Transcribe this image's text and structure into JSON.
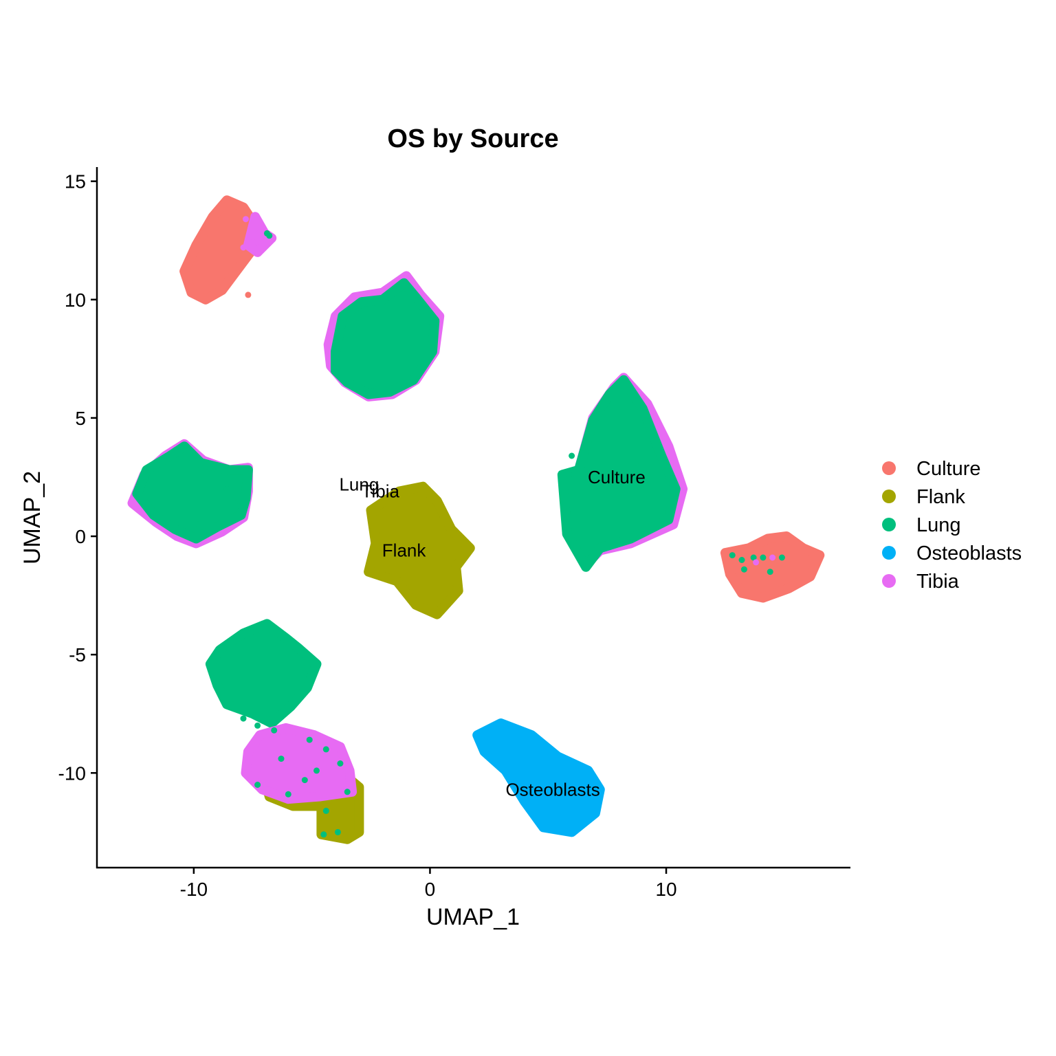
{
  "chart_data": {
    "type": "scatter",
    "title": "OS by Source",
    "xlabel": "UMAP_1",
    "ylabel": "UMAP_2",
    "xlim": [
      -14.1,
      17.8
    ],
    "ylim": [
      -14,
      15.6
    ],
    "xticks": [
      -10,
      0,
      10
    ],
    "yticks": [
      -10,
      -5,
      0,
      5,
      10,
      15
    ],
    "grid": false,
    "legend_position": "right",
    "series": [
      {
        "name": "Culture",
        "color": "#F8766D"
      },
      {
        "name": "Flank",
        "color": "#A3A500"
      },
      {
        "name": "Lung",
        "color": "#00BF7D"
      },
      {
        "name": "Osteoblasts",
        "color": "#00B0F6"
      },
      {
        "name": "Tibia",
        "color": "#E76BF3"
      }
    ],
    "clusters": [
      {
        "series": "Culture",
        "points": [
          [
            -10.4,
            11.2
          ],
          [
            -9.9,
            12.3
          ],
          [
            -9.2,
            13.5
          ],
          [
            -8.6,
            14.2
          ],
          [
            -7.9,
            13.9
          ],
          [
            -7.3,
            13.0
          ],
          [
            -7.6,
            12.0
          ],
          [
            -8.2,
            11.2
          ],
          [
            -8.8,
            10.4
          ],
          [
            -9.5,
            10.0
          ],
          [
            -10.1,
            10.3
          ]
        ]
      },
      {
        "series": "Tibia",
        "points": [
          [
            -7.4,
            13.5
          ],
          [
            -7.0,
            12.8
          ],
          [
            -6.7,
            12.6
          ],
          [
            -7.3,
            12.0
          ],
          [
            -7.7,
            12.3
          ]
        ]
      },
      {
        "series": "Tibia",
        "points": [
          [
            -4.3,
            8.1
          ],
          [
            -4.0,
            9.3
          ],
          [
            -3.2,
            10.1
          ],
          [
            -2.0,
            10.3
          ],
          [
            -1.0,
            11.0
          ],
          [
            -0.4,
            10.2
          ],
          [
            0.4,
            9.3
          ],
          [
            0.2,
            7.8
          ],
          [
            -0.6,
            6.6
          ],
          [
            -1.6,
            6.0
          ],
          [
            -2.6,
            5.9
          ],
          [
            -3.6,
            6.5
          ],
          [
            -4.2,
            7.2
          ]
        ]
      },
      {
        "series": "Lung",
        "points": [
          [
            -4.0,
            7.8
          ],
          [
            -3.7,
            9.3
          ],
          [
            -2.9,
            9.9
          ],
          [
            -2.0,
            10.0
          ],
          [
            -1.1,
            10.7
          ],
          [
            -0.6,
            10.1
          ],
          [
            0.2,
            9.1
          ],
          [
            0.1,
            7.8
          ],
          [
            -0.7,
            6.6
          ],
          [
            -1.7,
            6.1
          ],
          [
            -2.6,
            6.0
          ],
          [
            -3.5,
            6.5
          ],
          [
            -4.0,
            7.0
          ]
        ]
      },
      {
        "series": "Tibia",
        "points": [
          [
            -12.6,
            1.4
          ],
          [
            -12.1,
            2.6
          ],
          [
            -11.2,
            3.4
          ],
          [
            -10.4,
            3.9
          ],
          [
            -9.6,
            3.2
          ],
          [
            -8.5,
            2.8
          ],
          [
            -7.7,
            2.9
          ],
          [
            -7.7,
            1.9
          ],
          [
            -7.9,
            0.8
          ],
          [
            -8.8,
            0.2
          ],
          [
            -9.9,
            -0.3
          ],
          [
            -10.7,
            0.0
          ],
          [
            -11.6,
            0.6
          ]
        ]
      },
      {
        "series": "Lung",
        "points": [
          [
            -12.4,
            1.8
          ],
          [
            -12.0,
            2.8
          ],
          [
            -11.0,
            3.4
          ],
          [
            -10.4,
            3.8
          ],
          [
            -9.7,
            3.1
          ],
          [
            -8.5,
            2.8
          ],
          [
            -7.7,
            2.8
          ],
          [
            -7.8,
            1.6
          ],
          [
            -8.0,
            0.9
          ],
          [
            -9.0,
            0.4
          ],
          [
            -9.9,
            -0.1
          ],
          [
            -10.8,
            0.3
          ],
          [
            -11.7,
            0.9
          ]
        ]
      },
      {
        "series": "Flank",
        "points": [
          [
            -2.5,
            1.1
          ],
          [
            -1.3,
            1.9
          ],
          [
            -0.3,
            2.1
          ],
          [
            0.3,
            1.5
          ],
          [
            0.9,
            0.3
          ],
          [
            1.7,
            -0.5
          ],
          [
            1.1,
            -1.3
          ],
          [
            1.2,
            -2.3
          ],
          [
            0.3,
            -3.3
          ],
          [
            -0.6,
            -2.9
          ],
          [
            -1.4,
            -1.9
          ],
          [
            -2.6,
            -1.5
          ],
          [
            -2.3,
            -0.3
          ]
        ]
      },
      {
        "series": "Tibia",
        "points": [
          [
            6.3,
            2.8
          ],
          [
            6.9,
            5.0
          ],
          [
            7.8,
            6.3
          ],
          [
            8.2,
            6.7
          ],
          [
            9.2,
            5.6
          ],
          [
            10.1,
            3.8
          ],
          [
            10.7,
            2.0
          ],
          [
            10.3,
            0.5
          ],
          [
            8.5,
            -0.3
          ],
          [
            7.2,
            -0.6
          ],
          [
            6.6,
            -1.2
          ],
          [
            5.8,
            0.1
          ],
          [
            6.0,
            1.5
          ]
        ]
      },
      {
        "series": "Lung",
        "points": [
          [
            6.3,
            2.8
          ],
          [
            6.9,
            4.9
          ],
          [
            7.6,
            6.0
          ],
          [
            8.2,
            6.6
          ],
          [
            9.0,
            5.4
          ],
          [
            9.8,
            3.4
          ],
          [
            10.4,
            2.0
          ],
          [
            10.1,
            0.7
          ],
          [
            8.5,
            -0.1
          ],
          [
            7.2,
            -0.5
          ],
          [
            6.6,
            -1.3
          ],
          [
            5.8,
            0.1
          ],
          [
            5.6,
            2.6
          ]
        ]
      },
      {
        "series": "Culture",
        "points": [
          [
            12.5,
            -0.7
          ],
          [
            13.5,
            -0.5
          ],
          [
            14.3,
            -0.1
          ],
          [
            15.1,
            0.0
          ],
          [
            15.8,
            -0.5
          ],
          [
            16.5,
            -0.8
          ],
          [
            16.1,
            -1.7
          ],
          [
            15.2,
            -2.2
          ],
          [
            14.1,
            -2.6
          ],
          [
            13.2,
            -2.4
          ],
          [
            12.7,
            -1.6
          ]
        ]
      },
      {
        "series": "Lung",
        "points": [
          [
            -9.3,
            -5.4
          ],
          [
            -8.9,
            -4.8
          ],
          [
            -7.9,
            -4.1
          ],
          [
            -6.9,
            -3.7
          ],
          [
            -6.1,
            -4.3
          ],
          [
            -5.6,
            -4.7
          ],
          [
            -4.8,
            -5.4
          ],
          [
            -5.2,
            -6.4
          ],
          [
            -5.9,
            -7.2
          ],
          [
            -6.7,
            -7.9
          ],
          [
            -7.5,
            -7.5
          ],
          [
            -8.6,
            -7.1
          ],
          [
            -9.0,
            -6.3
          ]
        ]
      },
      {
        "series": "Flank",
        "points": [
          [
            -7.0,
            -10.2
          ],
          [
            -5.8,
            -10.7
          ],
          [
            -4.4,
            -10.4
          ],
          [
            -3.6,
            -10.1
          ],
          [
            -3.0,
            -10.6
          ],
          [
            -3.0,
            -12.5
          ],
          [
            -3.5,
            -12.8
          ],
          [
            -4.6,
            -12.6
          ],
          [
            -4.6,
            -11.4
          ],
          [
            -5.8,
            -11.4
          ],
          [
            -6.8,
            -11.0
          ]
        ]
      },
      {
        "series": "Tibia",
        "points": [
          [
            -7.7,
            -9.1
          ],
          [
            -7.2,
            -8.4
          ],
          [
            -6.1,
            -8.1
          ],
          [
            -4.9,
            -8.4
          ],
          [
            -3.8,
            -8.9
          ],
          [
            -3.4,
            -9.9
          ],
          [
            -3.3,
            -10.8
          ],
          [
            -4.7,
            -11.0
          ],
          [
            -6.0,
            -11.1
          ],
          [
            -7.1,
            -10.7
          ],
          [
            -7.8,
            -10.0
          ]
        ]
      },
      {
        "series": "Osteoblasts",
        "points": [
          [
            2.0,
            -8.4
          ],
          [
            3.0,
            -7.9
          ],
          [
            4.3,
            -8.4
          ],
          [
            5.4,
            -9.3
          ],
          [
            6.7,
            -9.9
          ],
          [
            7.2,
            -10.7
          ],
          [
            7.0,
            -11.7
          ],
          [
            6.0,
            -12.5
          ],
          [
            4.8,
            -12.3
          ],
          [
            4.0,
            -11.2
          ],
          [
            3.2,
            -9.9
          ],
          [
            2.3,
            -9.1
          ]
        ]
      }
    ],
    "scattered_points": [
      {
        "series": "Lung",
        "xy": [
          [
            -6.8,
            12.7
          ],
          [
            -6.9,
            12.8
          ],
          [
            -7.9,
            -7.7
          ],
          [
            -7.3,
            -8.0
          ],
          [
            -6.6,
            -8.2
          ],
          [
            -5.1,
            -8.6
          ],
          [
            -4.4,
            -9.0
          ],
          [
            -3.8,
            -9.6
          ],
          [
            -6.3,
            -9.4
          ],
          [
            -5.3,
            -10.3
          ],
          [
            -7.3,
            -10.5
          ],
          [
            -6.0,
            -10.9
          ],
          [
            -4.8,
            -9.9
          ],
          [
            -3.5,
            -10.8
          ],
          [
            -4.4,
            -11.6
          ],
          [
            -3.9,
            -12.5
          ],
          [
            -4.5,
            -12.6
          ],
          [
            -8.1,
            1.5
          ],
          [
            -9.8,
            0.5
          ],
          [
            -8.6,
            2.0
          ],
          [
            6.0,
            3.4
          ],
          [
            5.9,
            2.6
          ],
          [
            6.6,
            3.6
          ],
          [
            8.7,
            3.1
          ],
          [
            12.8,
            -0.8
          ],
          [
            13.2,
            -1.0
          ],
          [
            13.7,
            -0.9
          ],
          [
            13.3,
            -1.4
          ],
          [
            14.1,
            -0.9
          ],
          [
            14.4,
            -1.5
          ],
          [
            14.9,
            -0.9
          ]
        ]
      },
      {
        "series": "Tibia",
        "points_note": "",
        "xy": [
          [
            -7.8,
            13.4
          ],
          [
            -7.7,
            12.5
          ],
          [
            -7.9,
            12.2
          ],
          [
            13.8,
            -1.1
          ],
          [
            14.5,
            -0.9
          ]
        ]
      },
      {
        "series": "Culture",
        "xy": [
          [
            -7.7,
            10.2
          ]
        ]
      }
    ],
    "annotations": [
      {
        "text": "Lung",
        "x": -3.0,
        "y": 2.2
      },
      {
        "text": "Tibia",
        "x": -2.1,
        "y": 1.9
      },
      {
        "text": "Flank",
        "x": -1.1,
        "y": -0.6
      },
      {
        "text": "Culture",
        "x": 7.9,
        "y": 2.5
      },
      {
        "text": "Osteoblasts",
        "x": 5.2,
        "y": -10.7
      }
    ]
  }
}
